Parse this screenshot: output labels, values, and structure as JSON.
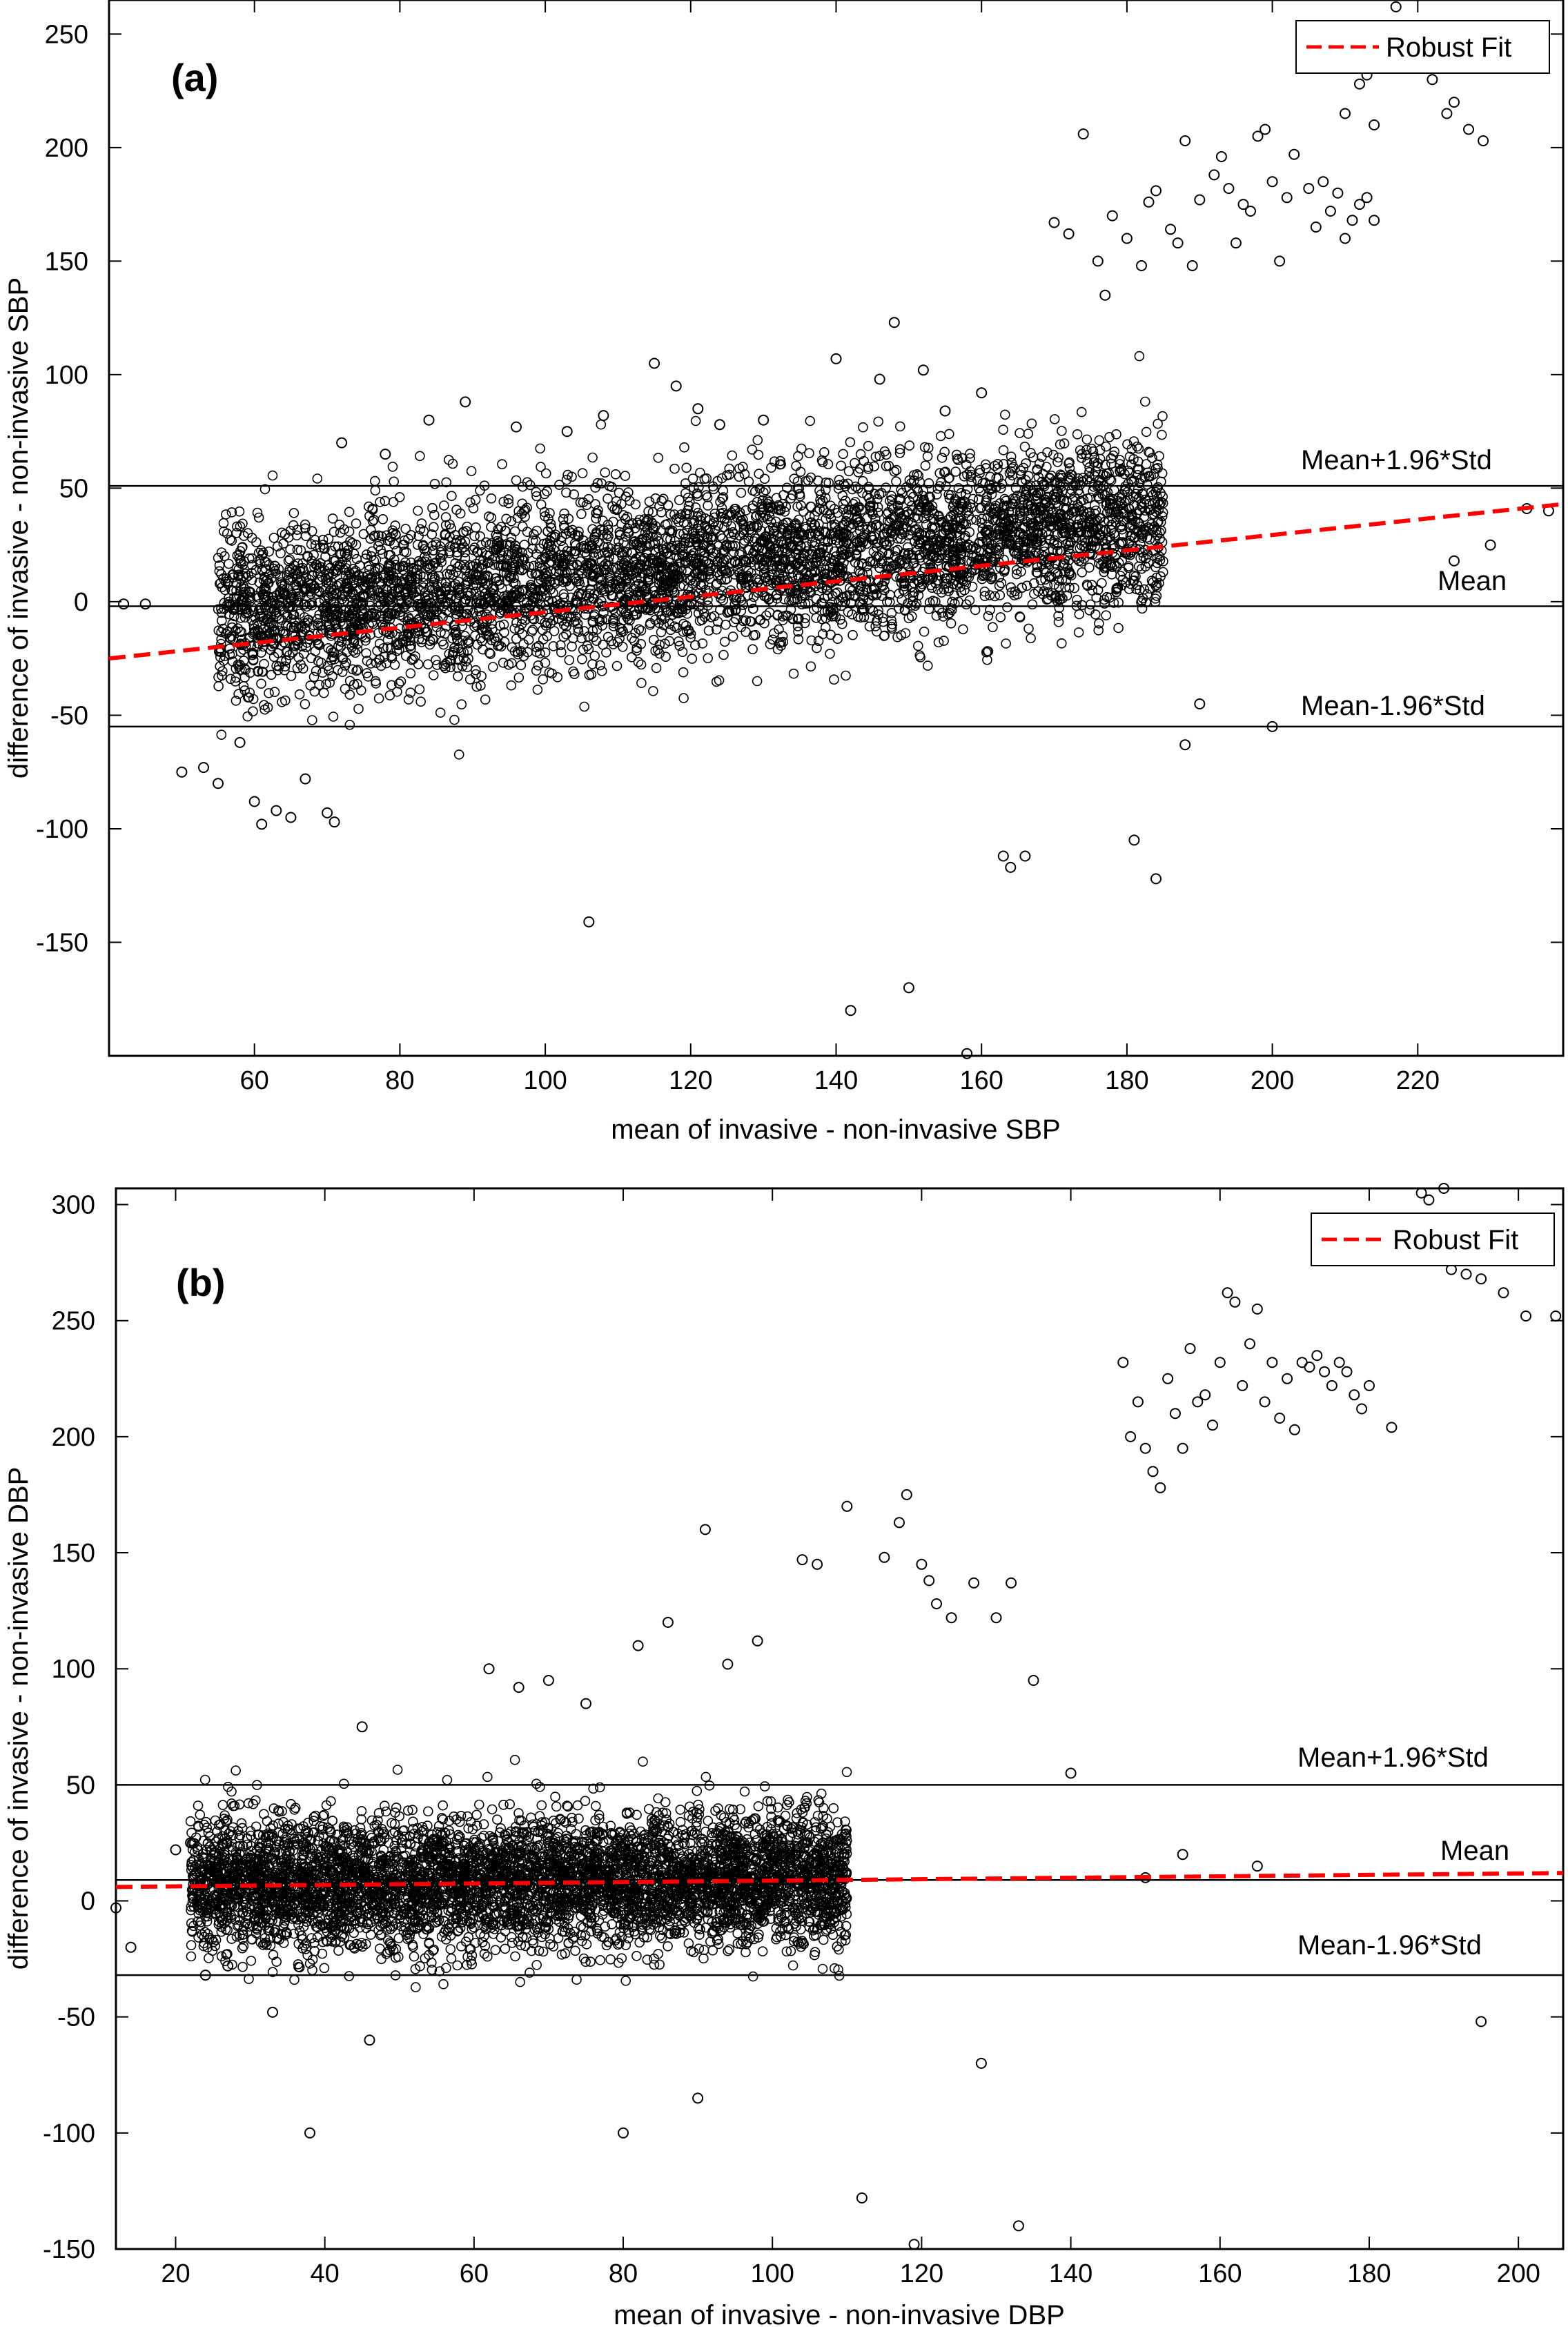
{
  "chart_data": [
    {
      "type": "scatter",
      "panel_label": "(a)",
      "xlabel": "mean of invasive - non-invasive SBP",
      "ylabel": "difference of invasive - non-invasive SBP",
      "xlim": [
        40,
        240
      ],
      "ylim": [
        -200,
        265
      ],
      "xticks": [
        60,
        80,
        100,
        120,
        140,
        160,
        180,
        200,
        220
      ],
      "yticks": [
        -150,
        -100,
        -50,
        0,
        50,
        100,
        150,
        200,
        250
      ],
      "grid": false,
      "legend": {
        "placement": "top-right",
        "entries": [
          "Robust Fit"
        ]
      },
      "reference_lines": [
        {
          "label": "Mean+1.96*Std",
          "y": 51
        },
        {
          "label": "Mean",
          "y": -2
        },
        {
          "label": "Mean-1.96*Std",
          "y": -55
        }
      ],
      "robust_fit": {
        "x": [
          40,
          240
        ],
        "y": [
          -25,
          43
        ],
        "color": "#ff0000"
      },
      "cloud": {
        "center_intercept": -25,
        "center_slope": 0.34,
        "half_width": 38,
        "x_range": [
          55,
          185
        ]
      },
      "outliers": [
        [
          42,
          -1
        ],
        [
          45,
          -1
        ],
        [
          50,
          -75
        ],
        [
          53,
          -73
        ],
        [
          55,
          -80
        ],
        [
          58,
          -62
        ],
        [
          60,
          -88
        ],
        [
          61,
          -98
        ],
        [
          63,
          -92
        ],
        [
          65,
          -95
        ],
        [
          67,
          -78
        ],
        [
          70,
          -93
        ],
        [
          71,
          -97
        ],
        [
          72,
          70
        ],
        [
          78,
          65
        ],
        [
          84,
          80
        ],
        [
          89,
          88
        ],
        [
          96,
          77
        ],
        [
          103,
          75
        ],
        [
          106,
          -141
        ],
        [
          108,
          82
        ],
        [
          115,
          105
        ],
        [
          118,
          95
        ],
        [
          121,
          85
        ],
        [
          124,
          78
        ],
        [
          130,
          80
        ],
        [
          140,
          107
        ],
        [
          142,
          -180
        ],
        [
          146,
          98
        ],
        [
          148,
          123
        ],
        [
          150,
          -170
        ],
        [
          152,
          102
        ],
        [
          155,
          84
        ],
        [
          158,
          -199
        ],
        [
          160,
          92
        ],
        [
          163,
          -112
        ],
        [
          164,
          -117
        ],
        [
          166,
          -112
        ],
        [
          170,
          167
        ],
        [
          172,
          162
        ],
        [
          174,
          206
        ],
        [
          176,
          150
        ],
        [
          177,
          135
        ],
        [
          178,
          170
        ],
        [
          180,
          160
        ],
        [
          182,
          148
        ],
        [
          183,
          176
        ],
        [
          184,
          181
        ],
        [
          186,
          164
        ],
        [
          187,
          158
        ],
        [
          188,
          203
        ],
        [
          189,
          148
        ],
        [
          190,
          177
        ],
        [
          192,
          188
        ],
        [
          193,
          196
        ],
        [
          194,
          182
        ],
        [
          195,
          158
        ],
        [
          196,
          175
        ],
        [
          197,
          172
        ],
        [
          198,
          205
        ],
        [
          199,
          208
        ],
        [
          200,
          185
        ],
        [
          201,
          150
        ],
        [
          202,
          178
        ],
        [
          203,
          197
        ],
        [
          205,
          182
        ],
        [
          206,
          165
        ],
        [
          207,
          185
        ],
        [
          208,
          172
        ],
        [
          209,
          180
        ],
        [
          210,
          160
        ],
        [
          211,
          168
        ],
        [
          212,
          175
        ],
        [
          213,
          178
        ],
        [
          214,
          168
        ],
        [
          208,
          238
        ],
        [
          210,
          215
        ],
        [
          212,
          228
        ],
        [
          213,
          232
        ],
        [
          214,
          210
        ],
        [
          216,
          238
        ],
        [
          217,
          262
        ],
        [
          218,
          235
        ],
        [
          219,
          250
        ],
        [
          220,
          242
        ],
        [
          222,
          230
        ],
        [
          224,
          215
        ],
        [
          225,
          220
        ],
        [
          227,
          208
        ],
        [
          229,
          203
        ],
        [
          200,
          -55
        ],
        [
          181,
          -105
        ],
        [
          184,
          -122
        ],
        [
          188,
          -63
        ],
        [
          190,
          -45
        ],
        [
          235,
          41
        ],
        [
          238,
          40
        ],
        [
          230,
          25
        ],
        [
          225,
          18
        ]
      ]
    },
    {
      "type": "scatter",
      "panel_label": "(b)",
      "xlabel": "mean of invasive - non-invasive DBP",
      "ylabel": "difference of invasive - non-invasive DBP",
      "xlim": [
        12,
        206
      ],
      "ylim": [
        -150,
        307
      ],
      "xticks": [
        20,
        40,
        60,
        80,
        100,
        120,
        140,
        160,
        180,
        200
      ],
      "yticks": [
        -150,
        -100,
        -50,
        0,
        50,
        100,
        150,
        200,
        250,
        300
      ],
      "grid": false,
      "legend": {
        "placement": "top-right",
        "entries": [
          "Robust Fit"
        ]
      },
      "reference_lines": [
        {
          "label": "Mean+1.96*Std",
          "y": 50
        },
        {
          "label": "Mean",
          "y": 9
        },
        {
          "label": "Mean-1.96*Std",
          "y": -32
        }
      ],
      "robust_fit": {
        "x": [
          12,
          206
        ],
        "y": [
          6,
          12
        ],
        "color": "#ff0000"
      },
      "cloud": {
        "center_intercept": 5,
        "center_slope": 0.05,
        "half_width": 28,
        "x_range": [
          22,
          110
        ]
      },
      "outliers": [
        [
          12,
          -3
        ],
        [
          14,
          -20
        ],
        [
          20,
          22
        ],
        [
          22,
          25
        ],
        [
          24,
          -32
        ],
        [
          27,
          -28
        ],
        [
          33,
          -48
        ],
        [
          38,
          -100
        ],
        [
          45,
          75
        ],
        [
          46,
          -60
        ],
        [
          62,
          100
        ],
        [
          66,
          92
        ],
        [
          70,
          95
        ],
        [
          75,
          85
        ],
        [
          80,
          -100
        ],
        [
          82,
          110
        ],
        [
          86,
          120
        ],
        [
          90,
          -85
        ],
        [
          91,
          160
        ],
        [
          94,
          102
        ],
        [
          98,
          112
        ],
        [
          104,
          147
        ],
        [
          106,
          145
        ],
        [
          110,
          170
        ],
        [
          112,
          -128
        ],
        [
          115,
          148
        ],
        [
          117,
          163
        ],
        [
          118,
          175
        ],
        [
          119,
          -148
        ],
        [
          120,
          145
        ],
        [
          121,
          138
        ],
        [
          122,
          128
        ],
        [
          124,
          122
        ],
        [
          127,
          137
        ],
        [
          128,
          -70
        ],
        [
          130,
          122
        ],
        [
          132,
          137
        ],
        [
          133,
          -140
        ],
        [
          135,
          95
        ],
        [
          147,
          232
        ],
        [
          148,
          200
        ],
        [
          149,
          215
        ],
        [
          150,
          195
        ],
        [
          151,
          185
        ],
        [
          152,
          178
        ],
        [
          153,
          225
        ],
        [
          154,
          210
        ],
        [
          155,
          195
        ],
        [
          156,
          238
        ],
        [
          157,
          215
        ],
        [
          158,
          218
        ],
        [
          159,
          205
        ],
        [
          160,
          232
        ],
        [
          161,
          262
        ],
        [
          162,
          258
        ],
        [
          163,
          222
        ],
        [
          164,
          240
        ],
        [
          165,
          255
        ],
        [
          166,
          215
        ],
        [
          167,
          232
        ],
        [
          168,
          208
        ],
        [
          169,
          225
        ],
        [
          170,
          203
        ],
        [
          171,
          232
        ],
        [
          172,
          230
        ],
        [
          173,
          235
        ],
        [
          174,
          228
        ],
        [
          175,
          222
        ],
        [
          176,
          232
        ],
        [
          177,
          228
        ],
        [
          178,
          218
        ],
        [
          179,
          212
        ],
        [
          180,
          222
        ],
        [
          183,
          204
        ],
        [
          187,
          305
        ],
        [
          188,
          302
        ],
        [
          190,
          307
        ],
        [
          191,
          272
        ],
        [
          193,
          270
        ],
        [
          195,
          268
        ],
        [
          198,
          262
        ],
        [
          201,
          252
        ],
        [
          205,
          252
        ],
        [
          140,
          55
        ],
        [
          150,
          10
        ],
        [
          155,
          20
        ],
        [
          165,
          15
        ],
        [
          195,
          -52
        ]
      ]
    }
  ]
}
